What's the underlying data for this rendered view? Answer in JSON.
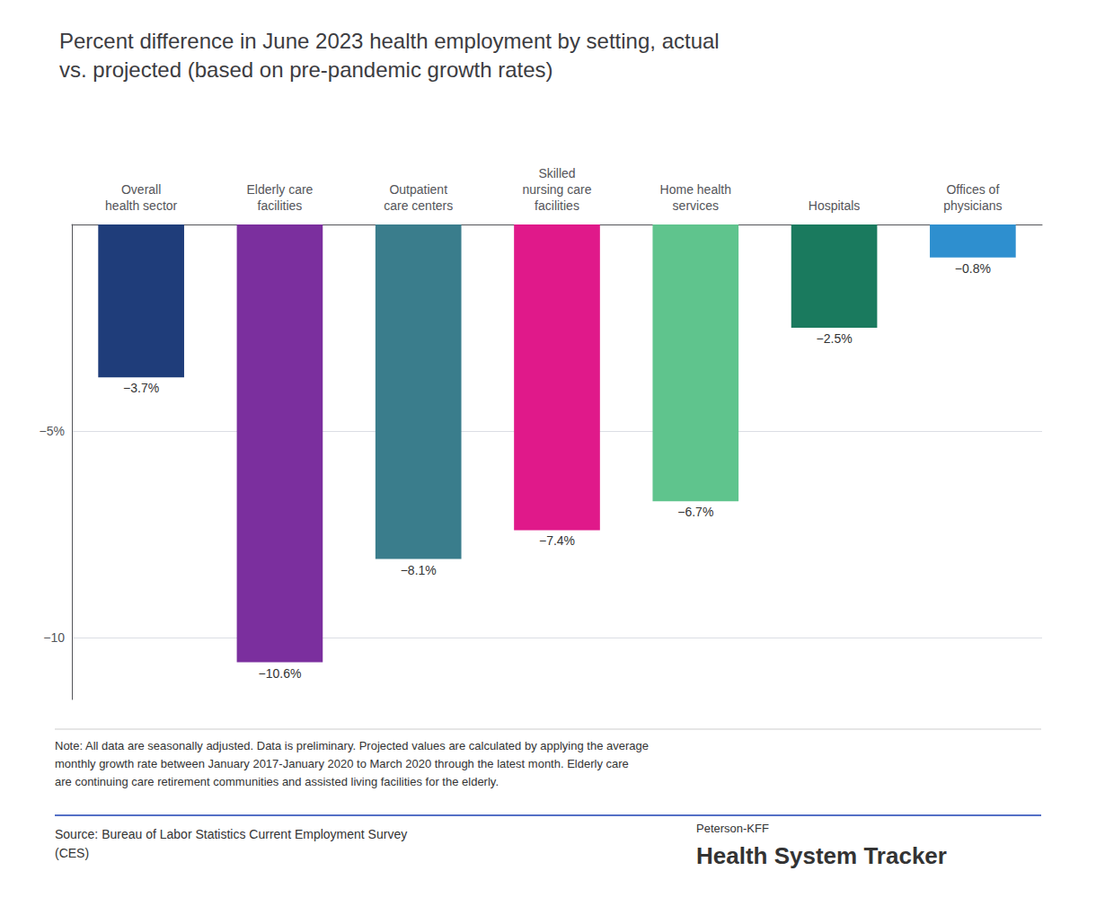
{
  "chart_data": {
    "type": "bar",
    "title": "Percent difference in June 2023 health employment by setting, actual\nvs. projected (based on pre-pandemic growth rates)",
    "categories": [
      "Overall\nhealth sector",
      "Elderly care\nfacilities",
      "Outpatient\ncare centers",
      "Skilled\nnursing care\nfacilities",
      "Home health\nservices",
      "Hospitals",
      "Offices of\nphysicians"
    ],
    "values": [
      -3.7,
      -10.6,
      -8.1,
      -7.4,
      -6.7,
      -2.5,
      -0.8
    ],
    "value_labels": [
      "−3.7%",
      "−10.6%",
      "−8.1%",
      "−7.4%",
      "−6.7%",
      "−2.5%",
      "−0.8%"
    ],
    "data_labels": true,
    "colors": [
      "#1f3d7a",
      "#7b2f9e",
      "#3a7d8c",
      "#e0198a",
      "#5fc48d",
      "#1a7a5e",
      "#2e8fcf"
    ],
    "ylim": [
      -11.5,
      0
    ],
    "yticks": [
      {
        "value": -10,
        "label": "−10"
      },
      {
        "value": -5,
        "label": "−5%"
      },
      {
        "value": 0,
        "label": ""
      }
    ],
    "grid": true,
    "annotations": [
      "Note: All data are seasonally adjusted. Data is preliminary. Projected values are calculated by applying the average\nmonthly growth rate between January 2017-January 2020 to March 2020 through the latest month. Elderly care\nare continuing care retirement communities and assisted living facilities for the elderly.",
      "Source: Bureau of Labor Statistics Current Employment Survey\n(CES)",
      "Peterson-KFF",
      "Health System Tracker"
    ]
  }
}
